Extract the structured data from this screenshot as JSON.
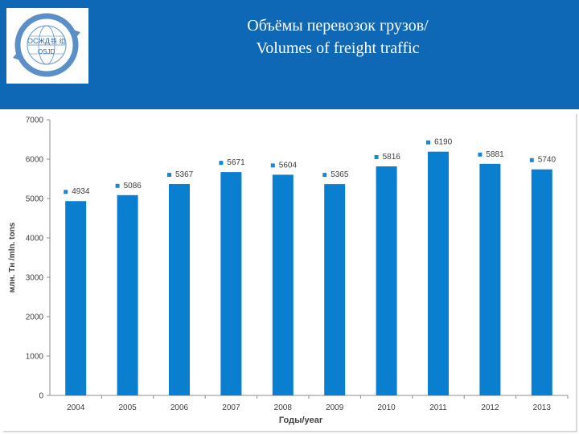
{
  "slide": {
    "title_line1": "Объёмы перевозок грузов/",
    "title_line2": "Volumes of freight traffic",
    "logo": {
      "text_main": "ОСЖД",
      "text_chinese": "铁 组",
      "text_code": "OSJD",
      "icon": "osjd-globe-logo"
    }
  },
  "colors": {
    "header": "#0f68b6",
    "bar": "#0a7fd0",
    "marker": "#1a86d6"
  },
  "chart_data": {
    "type": "bar",
    "categories": [
      "2004",
      "2005",
      "2006",
      "2007",
      "2008",
      "2009",
      "2010",
      "2011",
      "2012",
      "2013"
    ],
    "values": [
      4934,
      5086,
      5367,
      5671,
      5604,
      5365,
      5816,
      6190,
      5881,
      5740
    ],
    "data_labels": [
      "4934",
      "5086",
      "5367",
      "5671",
      "5604",
      "5365",
      "5816",
      "6190",
      "5881",
      "5740"
    ],
    "title": "",
    "xlabel": "Годы/year",
    "ylabel": "млн. Тн /mln. tons",
    "ylim": [
      0,
      7000
    ],
    "yticks": [
      0,
      1000,
      2000,
      3000,
      4000,
      5000,
      6000,
      7000
    ],
    "grid": false,
    "legend": "none"
  }
}
